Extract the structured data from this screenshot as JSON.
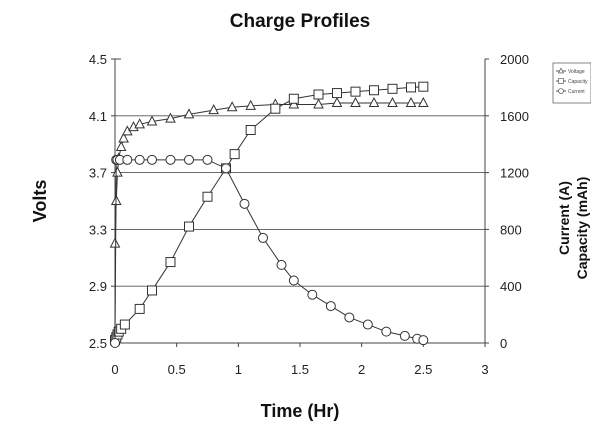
{
  "chart_data": {
    "type": "line",
    "title": "Charge Profiles",
    "xlabel": "Time (Hr)",
    "ylabel": "Volts",
    "y2label_lines": [
      "Current (A)",
      "Capacity (mAh)"
    ],
    "xlim": [
      0,
      3
    ],
    "ylim": [
      2.5,
      4.5
    ],
    "y2lim": [
      0,
      2000
    ],
    "xticks": [
      "0",
      "0.5",
      "1",
      "1.5",
      "2",
      "2.5",
      "3"
    ],
    "yticks": [
      "4.5",
      "4.1",
      "3.7",
      "3.3",
      "2.9",
      "2.5"
    ],
    "y2ticks": [
      "2000",
      "1600",
      "1200",
      "800",
      "400",
      "0"
    ],
    "grid": "horizontal",
    "legend_position": "top-right",
    "series": [
      {
        "name": "Voltage",
        "axis": "left",
        "marker": "triangle",
        "x": [
          0,
          0.01,
          0.02,
          0.03,
          0.05,
          0.07,
          0.1,
          0.15,
          0.2,
          0.3,
          0.45,
          0.6,
          0.8,
          0.95,
          1.1,
          1.3,
          1.45,
          1.65,
          1.8,
          1.95,
          2.1,
          2.25,
          2.4,
          2.5
        ],
        "y": [
          3.2,
          3.5,
          3.7,
          3.8,
          3.88,
          3.94,
          3.99,
          4.02,
          4.04,
          4.06,
          4.08,
          4.11,
          4.14,
          4.16,
          4.17,
          4.18,
          4.18,
          4.18,
          4.19,
          4.19,
          4.19,
          4.19,
          4.19,
          4.19
        ]
      },
      {
        "name": "Capacity",
        "axis": "right",
        "marker": "square",
        "x": [
          0,
          0.01,
          0.02,
          0.03,
          0.05,
          0.08,
          0.2,
          0.3,
          0.45,
          0.6,
          0.75,
          0.9,
          0.97,
          1.1,
          1.3,
          1.45,
          1.65,
          1.8,
          1.95,
          2.1,
          2.25,
          2.4,
          2.5
        ],
        "y": [
          20,
          40,
          60,
          80,
          100,
          130,
          240,
          370,
          570,
          820,
          1030,
          1230,
          1330,
          1500,
          1650,
          1720,
          1750,
          1760,
          1770,
          1780,
          1790,
          1800,
          1805
        ]
      },
      {
        "name": "Current",
        "axis": "right",
        "marker": "circle",
        "x": [
          0,
          0.01,
          0.02,
          0.04,
          0.1,
          0.2,
          0.3,
          0.45,
          0.6,
          0.75,
          0.9,
          1.05,
          1.2,
          1.35,
          1.45,
          1.6,
          1.75,
          1.9,
          2.05,
          2.2,
          2.35,
          2.45,
          2.5
        ],
        "y": [
          0,
          1290,
          1290,
          1290,
          1290,
          1290,
          1290,
          1290,
          1290,
          1290,
          1230,
          980,
          740,
          550,
          440,
          340,
          260,
          180,
          130,
          80,
          50,
          30,
          20
        ]
      }
    ]
  }
}
